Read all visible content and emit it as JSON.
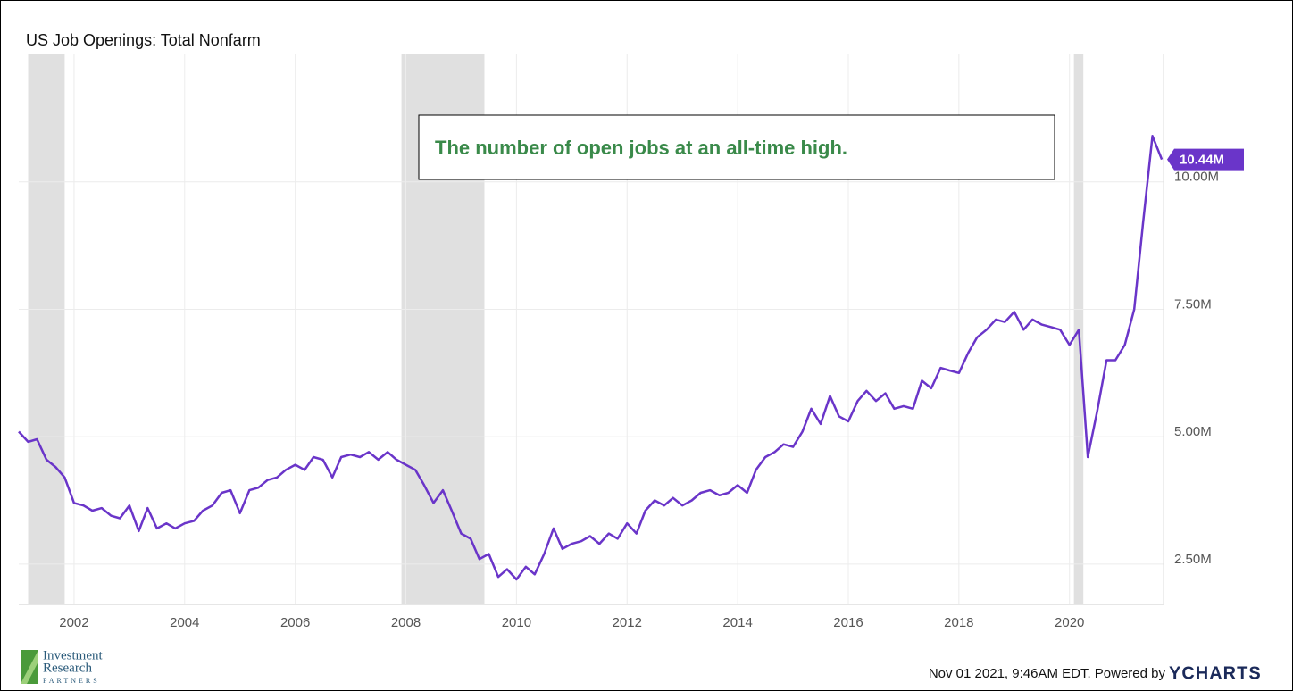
{
  "chart_data": {
    "type": "line",
    "title": "US Job Openings: Total Nonfarm",
    "annotation": "The number of open jobs at an all-time high.",
    "end_label": "10.44M",
    "footer": "Nov 01 2021, 9:46AM EDT. Powered by",
    "footer_brand": "YCHARTS",
    "logo": [
      "Investment",
      "Research",
      "PARTNERS"
    ],
    "xlim": [
      2001,
      2021.7
    ],
    "xticks": [
      2002,
      2004,
      2006,
      2008,
      2010,
      2012,
      2014,
      2016,
      2018,
      2020
    ],
    "ylim": [
      1.71,
      12.5
    ],
    "yticks": [
      {
        "value": 2.5,
        "label": "2.50M"
      },
      {
        "value": 5,
        "label": "5.00M"
      },
      {
        "value": 7.5,
        "label": "7.50M"
      },
      {
        "value": 10,
        "label": "10.00M"
      }
    ],
    "grid": true,
    "shaded_ranges": [
      [
        2001.17,
        2001.83
      ],
      [
        2007.92,
        2009.42
      ],
      [
        2020.08,
        2020.25
      ]
    ],
    "x": [
      2001.0,
      2001.17,
      2001.33,
      2001.5,
      2001.67,
      2001.83,
      2002.0,
      2002.17,
      2002.33,
      2002.5,
      2002.67,
      2002.83,
      2003.0,
      2003.17,
      2003.33,
      2003.5,
      2003.67,
      2003.83,
      2004.0,
      2004.17,
      2004.33,
      2004.5,
      2004.67,
      2004.83,
      2005.0,
      2005.17,
      2005.33,
      2005.5,
      2005.67,
      2005.83,
      2006.0,
      2006.17,
      2006.33,
      2006.5,
      2006.67,
      2006.83,
      2007.0,
      2007.17,
      2007.33,
      2007.5,
      2007.67,
      2007.83,
      2008.0,
      2008.17,
      2008.33,
      2008.5,
      2008.67,
      2008.83,
      2009.0,
      2009.17,
      2009.33,
      2009.5,
      2009.67,
      2009.83,
      2010.0,
      2010.17,
      2010.33,
      2010.5,
      2010.67,
      2010.83,
      2011.0,
      2011.17,
      2011.33,
      2011.5,
      2011.67,
      2011.83,
      2012.0,
      2012.17,
      2012.33,
      2012.5,
      2012.67,
      2012.83,
      2013.0,
      2013.17,
      2013.33,
      2013.5,
      2013.67,
      2013.83,
      2014.0,
      2014.17,
      2014.33,
      2014.5,
      2014.67,
      2014.83,
      2015.0,
      2015.17,
      2015.33,
      2015.5,
      2015.67,
      2015.83,
      2016.0,
      2016.17,
      2016.33,
      2016.5,
      2016.67,
      2016.83,
      2017.0,
      2017.17,
      2017.33,
      2017.5,
      2017.67,
      2017.83,
      2018.0,
      2018.17,
      2018.33,
      2018.5,
      2018.67,
      2018.83,
      2019.0,
      2019.17,
      2019.33,
      2019.5,
      2019.67,
      2019.83,
      2020.0,
      2020.17,
      2020.33,
      2020.5,
      2020.67,
      2020.83,
      2021.0,
      2021.17,
      2021.33,
      2021.5,
      2021.67
    ],
    "series": [
      {
        "name": "US Job Openings: Total Nonfarm",
        "color": "#6a35c9",
        "values": [
          5.1,
          4.9,
          4.95,
          4.55,
          4.4,
          4.2,
          3.7,
          3.65,
          3.55,
          3.6,
          3.45,
          3.4,
          3.65,
          3.15,
          3.6,
          3.2,
          3.3,
          3.2,
          3.3,
          3.35,
          3.55,
          3.65,
          3.9,
          3.95,
          3.5,
          3.95,
          4.0,
          4.15,
          4.2,
          4.35,
          4.45,
          4.35,
          4.6,
          4.55,
          4.2,
          4.6,
          4.65,
          4.6,
          4.7,
          4.55,
          4.7,
          4.55,
          4.45,
          4.35,
          4.05,
          3.7,
          3.95,
          3.55,
          3.1,
          3.0,
          2.6,
          2.7,
          2.25,
          2.4,
          2.2,
          2.45,
          2.3,
          2.7,
          3.2,
          2.8,
          2.9,
          2.95,
          3.05,
          2.9,
          3.1,
          3.0,
          3.3,
          3.1,
          3.55,
          3.75,
          3.65,
          3.8,
          3.65,
          3.75,
          3.9,
          3.95,
          3.85,
          3.9,
          4.05,
          3.9,
          4.35,
          4.6,
          4.7,
          4.85,
          4.8,
          5.1,
          5.55,
          5.25,
          5.8,
          5.4,
          5.3,
          5.7,
          5.9,
          5.7,
          5.85,
          5.55,
          5.6,
          5.55,
          6.1,
          5.95,
          6.35,
          6.3,
          6.25,
          6.65,
          6.95,
          7.1,
          7.3,
          7.25,
          7.45,
          7.1,
          7.3,
          7.2,
          7.15,
          7.1,
          6.8,
          7.1,
          4.6,
          5.5,
          6.5,
          6.5,
          6.8,
          7.5,
          9.2,
          10.9,
          10.44
        ]
      }
    ]
  }
}
